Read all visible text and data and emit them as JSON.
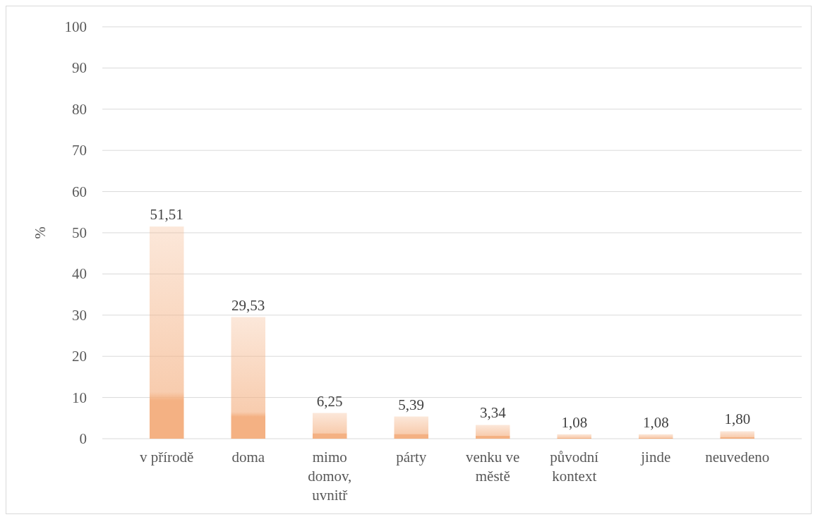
{
  "chart_data": {
    "type": "bar",
    "ylabel": "%",
    "categories": [
      "v přírodě",
      "doma",
      "mimo domov, uvnitř",
      "párty",
      "venku ve městě",
      "původní kontext",
      "jinde",
      "neuvedeno"
    ],
    "values": [
      51.51,
      29.53,
      6.25,
      5.39,
      3.34,
      1.08,
      1.08,
      1.8
    ],
    "value_labels": [
      "51,51",
      "29,53",
      "6,25",
      "5,39",
      "3,34",
      "1,08",
      "1,08",
      "1,80"
    ],
    "color": "#f4b183",
    "ylim": [
      0,
      100
    ],
    "yticks": [
      0,
      10,
      20,
      30,
      40,
      50,
      60,
      70,
      80,
      90,
      100
    ],
    "grid": "y"
  }
}
